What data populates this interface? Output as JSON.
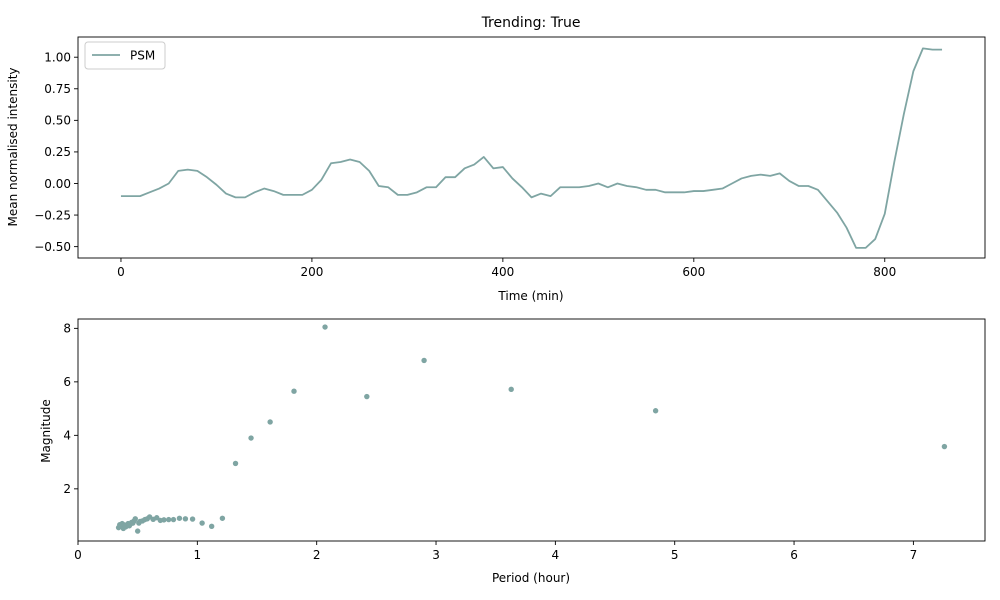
{
  "chart_data": [
    {
      "type": "line",
      "title": "Trending: True",
      "xlabel": "Time (min)",
      "ylabel": "Mean normalised intensity",
      "xlim": [
        -45,
        905
      ],
      "ylim": [
        -0.59,
        1.16
      ],
      "xticks": [
        0,
        200,
        400,
        600,
        800
      ],
      "xtick_labels": [
        "0",
        "200",
        "400",
        "600",
        "800"
      ],
      "yticks": [
        -0.5,
        -0.25,
        0.0,
        0.25,
        0.5,
        0.75,
        1.0
      ],
      "ytick_labels": [
        "−0.50",
        "−0.25",
        "0.00",
        "0.25",
        "0.50",
        "0.75",
        "1.00"
      ],
      "legend": {
        "position": "top-left",
        "entries": [
          "PSM"
        ]
      },
      "grid": false,
      "color": "#7fa5a3",
      "series": [
        {
          "name": "PSM",
          "x": [
            0,
            10,
            20,
            30,
            40,
            50,
            60,
            70,
            80,
            90,
            100,
            110,
            120,
            130,
            140,
            150,
            160,
            170,
            180,
            190,
            200,
            210,
            220,
            230,
            240,
            250,
            260,
            270,
            280,
            290,
            300,
            310,
            320,
            330,
            340,
            350,
            360,
            370,
            380,
            390,
            400,
            410,
            420,
            430,
            440,
            450,
            460,
            470,
            480,
            490,
            500,
            510,
            520,
            530,
            540,
            550,
            560,
            570,
            580,
            590,
            600,
            610,
            620,
            630,
            640,
            650,
            660,
            670,
            680,
            690,
            700,
            710,
            720,
            730,
            740,
            750,
            760,
            770,
            780,
            790,
            800,
            810,
            820,
            830,
            840,
            850,
            860
          ],
          "y": [
            -0.1,
            -0.1,
            -0.1,
            -0.07,
            -0.04,
            0.0,
            0.1,
            0.11,
            0.1,
            0.05,
            -0.01,
            -0.08,
            -0.11,
            -0.11,
            -0.07,
            -0.04,
            -0.06,
            -0.09,
            -0.09,
            -0.09,
            -0.05,
            0.03,
            0.16,
            0.17,
            0.19,
            0.17,
            0.1,
            -0.02,
            -0.03,
            -0.09,
            -0.09,
            -0.07,
            -0.03,
            -0.03,
            0.05,
            0.05,
            0.12,
            0.15,
            0.21,
            0.12,
            0.13,
            0.04,
            -0.03,
            -0.11,
            -0.08,
            -0.1,
            -0.03,
            -0.03,
            -0.03,
            -0.02,
            0.0,
            -0.03,
            0.0,
            -0.02,
            -0.03,
            -0.05,
            -0.05,
            -0.07,
            -0.07,
            -0.07,
            -0.06,
            -0.06,
            -0.05,
            -0.04,
            0.0,
            0.04,
            0.06,
            0.07,
            0.06,
            0.08,
            0.02,
            -0.02,
            -0.02,
            -0.05,
            -0.14,
            -0.23,
            -0.35,
            -0.51,
            -0.51,
            -0.44,
            -0.24,
            0.17,
            0.55,
            0.89,
            1.07,
            1.06,
            1.06
          ]
        }
      ]
    },
    {
      "type": "scatter",
      "xlabel": "Period (hour)",
      "ylabel": "Magnitude",
      "xlim": [
        0,
        7.6
      ],
      "ylim": [
        0.05,
        8.35
      ],
      "xticks": [
        0,
        1,
        2,
        3,
        4,
        5,
        6,
        7
      ],
      "xtick_labels": [
        "0",
        "1",
        "2",
        "3",
        "4",
        "5",
        "6",
        "7"
      ],
      "yticks": [
        2,
        4,
        6,
        8
      ],
      "ytick_labels": [
        "2",
        "4",
        "6",
        "8"
      ],
      "grid": false,
      "color": "#7fa5a3",
      "series": [
        {
          "x": [
            0.34,
            0.35,
            0.36,
            0.37,
            0.38,
            0.39,
            0.4,
            0.42,
            0.43,
            0.44,
            0.45,
            0.46,
            0.47,
            0.48,
            0.5,
            0.51,
            0.52,
            0.54,
            0.56,
            0.58,
            0.6,
            0.63,
            0.66,
            0.69,
            0.72,
            0.76,
            0.8,
            0.85,
            0.9,
            0.96,
            1.04,
            1.12,
            1.21,
            1.32,
            1.45,
            1.61,
            1.81,
            2.07,
            2.42,
            2.9,
            3.63,
            4.84,
            7.26
          ],
          "y": [
            0.55,
            0.66,
            0.6,
            0.7,
            0.52,
            0.65,
            0.58,
            0.7,
            0.62,
            0.68,
            0.75,
            0.72,
            0.8,
            0.88,
            0.42,
            0.72,
            0.78,
            0.8,
            0.85,
            0.88,
            0.95,
            0.86,
            0.92,
            0.82,
            0.84,
            0.85,
            0.85,
            0.9,
            0.88,
            0.87,
            0.72,
            0.6,
            0.9,
            2.95,
            3.9,
            4.5,
            5.65,
            8.05,
            5.45,
            6.8,
            5.72,
            4.92,
            3.58
          ]
        }
      ]
    }
  ]
}
